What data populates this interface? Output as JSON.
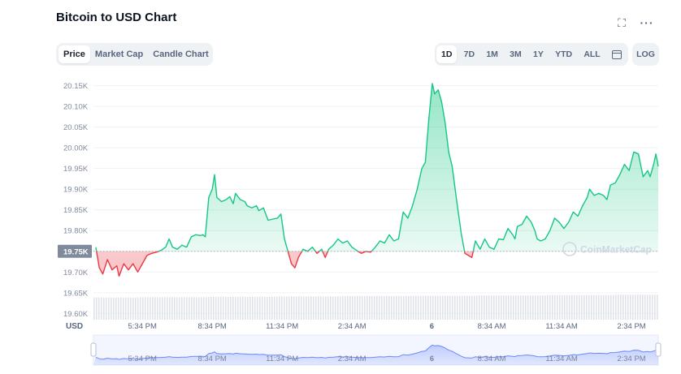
{
  "header": {
    "title": "Bitcoin to USD Chart",
    "fullscreen_icon": "fullscreen-icon",
    "more_icon": "more-horizontal-icon"
  },
  "chart_type_tabs": [
    {
      "label": "Price",
      "active": true
    },
    {
      "label": "Market Cap",
      "active": false
    },
    {
      "label": "Candle Chart",
      "active": false
    }
  ],
  "range_tabs": [
    {
      "label": "1D",
      "active": true
    },
    {
      "label": "7D",
      "active": false
    },
    {
      "label": "1M",
      "active": false
    },
    {
      "label": "3M",
      "active": false
    },
    {
      "label": "1Y",
      "active": false
    },
    {
      "label": "YTD",
      "active": false
    },
    {
      "label": "ALL",
      "active": false
    }
  ],
  "calendar_icon": "calendar-icon",
  "log_label": "LOG",
  "watermark": "CoinMarketCap",
  "colors": {
    "up": "#16c784",
    "down": "#ea3943",
    "accent": "#3861fb"
  },
  "chart_data": {
    "type": "line",
    "currency_label": "USD",
    "y_ticks": [
      "20.15K",
      "20.10K",
      "20.05K",
      "20.00K",
      "19.95K",
      "19.90K",
      "19.85K",
      "19.80K",
      "19.75K",
      "19.70K",
      "19.65K",
      "19.60K"
    ],
    "y_tick_values": [
      20150,
      20100,
      20050,
      20000,
      19950,
      19900,
      19850,
      19800,
      19750,
      19700,
      19650,
      19600
    ],
    "ylim": [
      19585,
      20157
    ],
    "reference_price": 19750,
    "reference_label": "19.75K",
    "x_ticks": [
      {
        "label": "5:34 PM",
        "t": 2
      },
      {
        "label": "8:34 PM",
        "t": 5
      },
      {
        "label": "11:34 PM",
        "t": 8
      },
      {
        "label": "2:34 AM",
        "t": 11
      },
      {
        "label": "6",
        "t": 14.43
      },
      {
        "label": "8:34 AM",
        "t": 17
      },
      {
        "label": "11:34 AM",
        "t": 20
      },
      {
        "label": "2:34 PM",
        "t": 23
      }
    ],
    "xlim": [
      -0.1,
      24.15
    ],
    "grid": true,
    "price_points": [
      [
        0,
        19760
      ],
      [
        0.15,
        19710
      ],
      [
        0.3,
        19695
      ],
      [
        0.5,
        19730
      ],
      [
        0.7,
        19705
      ],
      [
        0.9,
        19715
      ],
      [
        1.0,
        19690
      ],
      [
        1.2,
        19720
      ],
      [
        1.4,
        19705
      ],
      [
        1.6,
        19720
      ],
      [
        1.8,
        19700
      ],
      [
        2.0,
        19720
      ],
      [
        2.2,
        19740
      ],
      [
        2.4,
        19745
      ],
      [
        2.6,
        19748
      ],
      [
        2.8,
        19752
      ],
      [
        3.0,
        19760
      ],
      [
        3.15,
        19780
      ],
      [
        3.3,
        19760
      ],
      [
        3.5,
        19755
      ],
      [
        3.7,
        19765
      ],
      [
        3.9,
        19760
      ],
      [
        4.1,
        19785
      ],
      [
        4.3,
        19790
      ],
      [
        4.5,
        19788
      ],
      [
        4.6,
        19790
      ],
      [
        4.7,
        19785
      ],
      [
        4.85,
        19880
      ],
      [
        5.0,
        19900
      ],
      [
        5.1,
        19935
      ],
      [
        5.2,
        19880
      ],
      [
        5.4,
        19870
      ],
      [
        5.6,
        19875
      ],
      [
        5.75,
        19882
      ],
      [
        5.9,
        19865
      ],
      [
        6.0,
        19890
      ],
      [
        6.2,
        19875
      ],
      [
        6.4,
        19870
      ],
      [
        6.5,
        19860
      ],
      [
        6.7,
        19855
      ],
      [
        6.9,
        19860
      ],
      [
        7.0,
        19848
      ],
      [
        7.2,
        19855
      ],
      [
        7.4,
        19825
      ],
      [
        7.6,
        19828
      ],
      [
        7.8,
        19830
      ],
      [
        7.95,
        19840
      ],
      [
        8.1,
        19780
      ],
      [
        8.2,
        19760
      ],
      [
        8.4,
        19720
      ],
      [
        8.55,
        19710
      ],
      [
        8.7,
        19735
      ],
      [
        8.9,
        19755
      ],
      [
        9.1,
        19750
      ],
      [
        9.3,
        19760
      ],
      [
        9.5,
        19745
      ],
      [
        9.7,
        19755
      ],
      [
        9.85,
        19735
      ],
      [
        10.0,
        19755
      ],
      [
        10.2,
        19765
      ],
      [
        10.4,
        19780
      ],
      [
        10.6,
        19770
      ],
      [
        10.8,
        19775
      ],
      [
        11.0,
        19760
      ],
      [
        11.2,
        19752
      ],
      [
        11.4,
        19745
      ],
      [
        11.6,
        19750
      ],
      [
        11.8,
        19748
      ],
      [
        12.0,
        19760
      ],
      [
        12.2,
        19775
      ],
      [
        12.4,
        19770
      ],
      [
        12.6,
        19790
      ],
      [
        12.8,
        19775
      ],
      [
        13.0,
        19780
      ],
      [
        13.2,
        19845
      ],
      [
        13.4,
        19830
      ],
      [
        13.6,
        19860
      ],
      [
        13.8,
        19900
      ],
      [
        14.0,
        19950
      ],
      [
        14.15,
        19965
      ],
      [
        14.3,
        20070
      ],
      [
        14.45,
        20155
      ],
      [
        14.55,
        20130
      ],
      [
        14.7,
        20140
      ],
      [
        14.85,
        20110
      ],
      [
        15.0,
        20060
      ],
      [
        15.15,
        19990
      ],
      [
        15.3,
        19955
      ],
      [
        15.5,
        19870
      ],
      [
        15.7,
        19790
      ],
      [
        15.85,
        19745
      ],
      [
        16.0,
        19740
      ],
      [
        16.15,
        19735
      ],
      [
        16.3,
        19775
      ],
      [
        16.5,
        19755
      ],
      [
        16.7,
        19780
      ],
      [
        16.9,
        19760
      ],
      [
        17.1,
        19755
      ],
      [
        17.3,
        19780
      ],
      [
        17.5,
        19778
      ],
      [
        17.7,
        19805
      ],
      [
        17.9,
        19790
      ],
      [
        18.0,
        19780
      ],
      [
        18.1,
        19810
      ],
      [
        18.3,
        19815
      ],
      [
        18.5,
        19835
      ],
      [
        18.7,
        19820
      ],
      [
        18.85,
        19800
      ],
      [
        18.95,
        19780
      ],
      [
        19.1,
        19775
      ],
      [
        19.3,
        19780
      ],
      [
        19.5,
        19800
      ],
      [
        19.7,
        19830
      ],
      [
        19.9,
        19820
      ],
      [
        20.1,
        19805
      ],
      [
        20.3,
        19820
      ],
      [
        20.5,
        19845
      ],
      [
        20.7,
        19835
      ],
      [
        20.9,
        19860
      ],
      [
        21.1,
        19880
      ],
      [
        21.2,
        19900
      ],
      [
        21.4,
        19885
      ],
      [
        21.6,
        19890
      ],
      [
        21.8,
        19885
      ],
      [
        21.95,
        19875
      ],
      [
        22.1,
        19910
      ],
      [
        22.3,
        19915
      ],
      [
        22.5,
        19935
      ],
      [
        22.7,
        19960
      ],
      [
        22.9,
        19945
      ],
      [
        23.1,
        19990
      ],
      [
        23.3,
        19985
      ],
      [
        23.5,
        19930
      ],
      [
        23.7,
        19945
      ],
      [
        23.8,
        19930
      ],
      [
        23.95,
        19960
      ],
      [
        24.05,
        19985
      ],
      [
        24.15,
        19955
      ]
    ],
    "volume_values": [
      62,
      62,
      63,
      63,
      63,
      64,
      64,
      64,
      65,
      65,
      65,
      66,
      66,
      66,
      67,
      67,
      67,
      68,
      68,
      68,
      69,
      69,
      69,
      70,
      70
    ]
  }
}
